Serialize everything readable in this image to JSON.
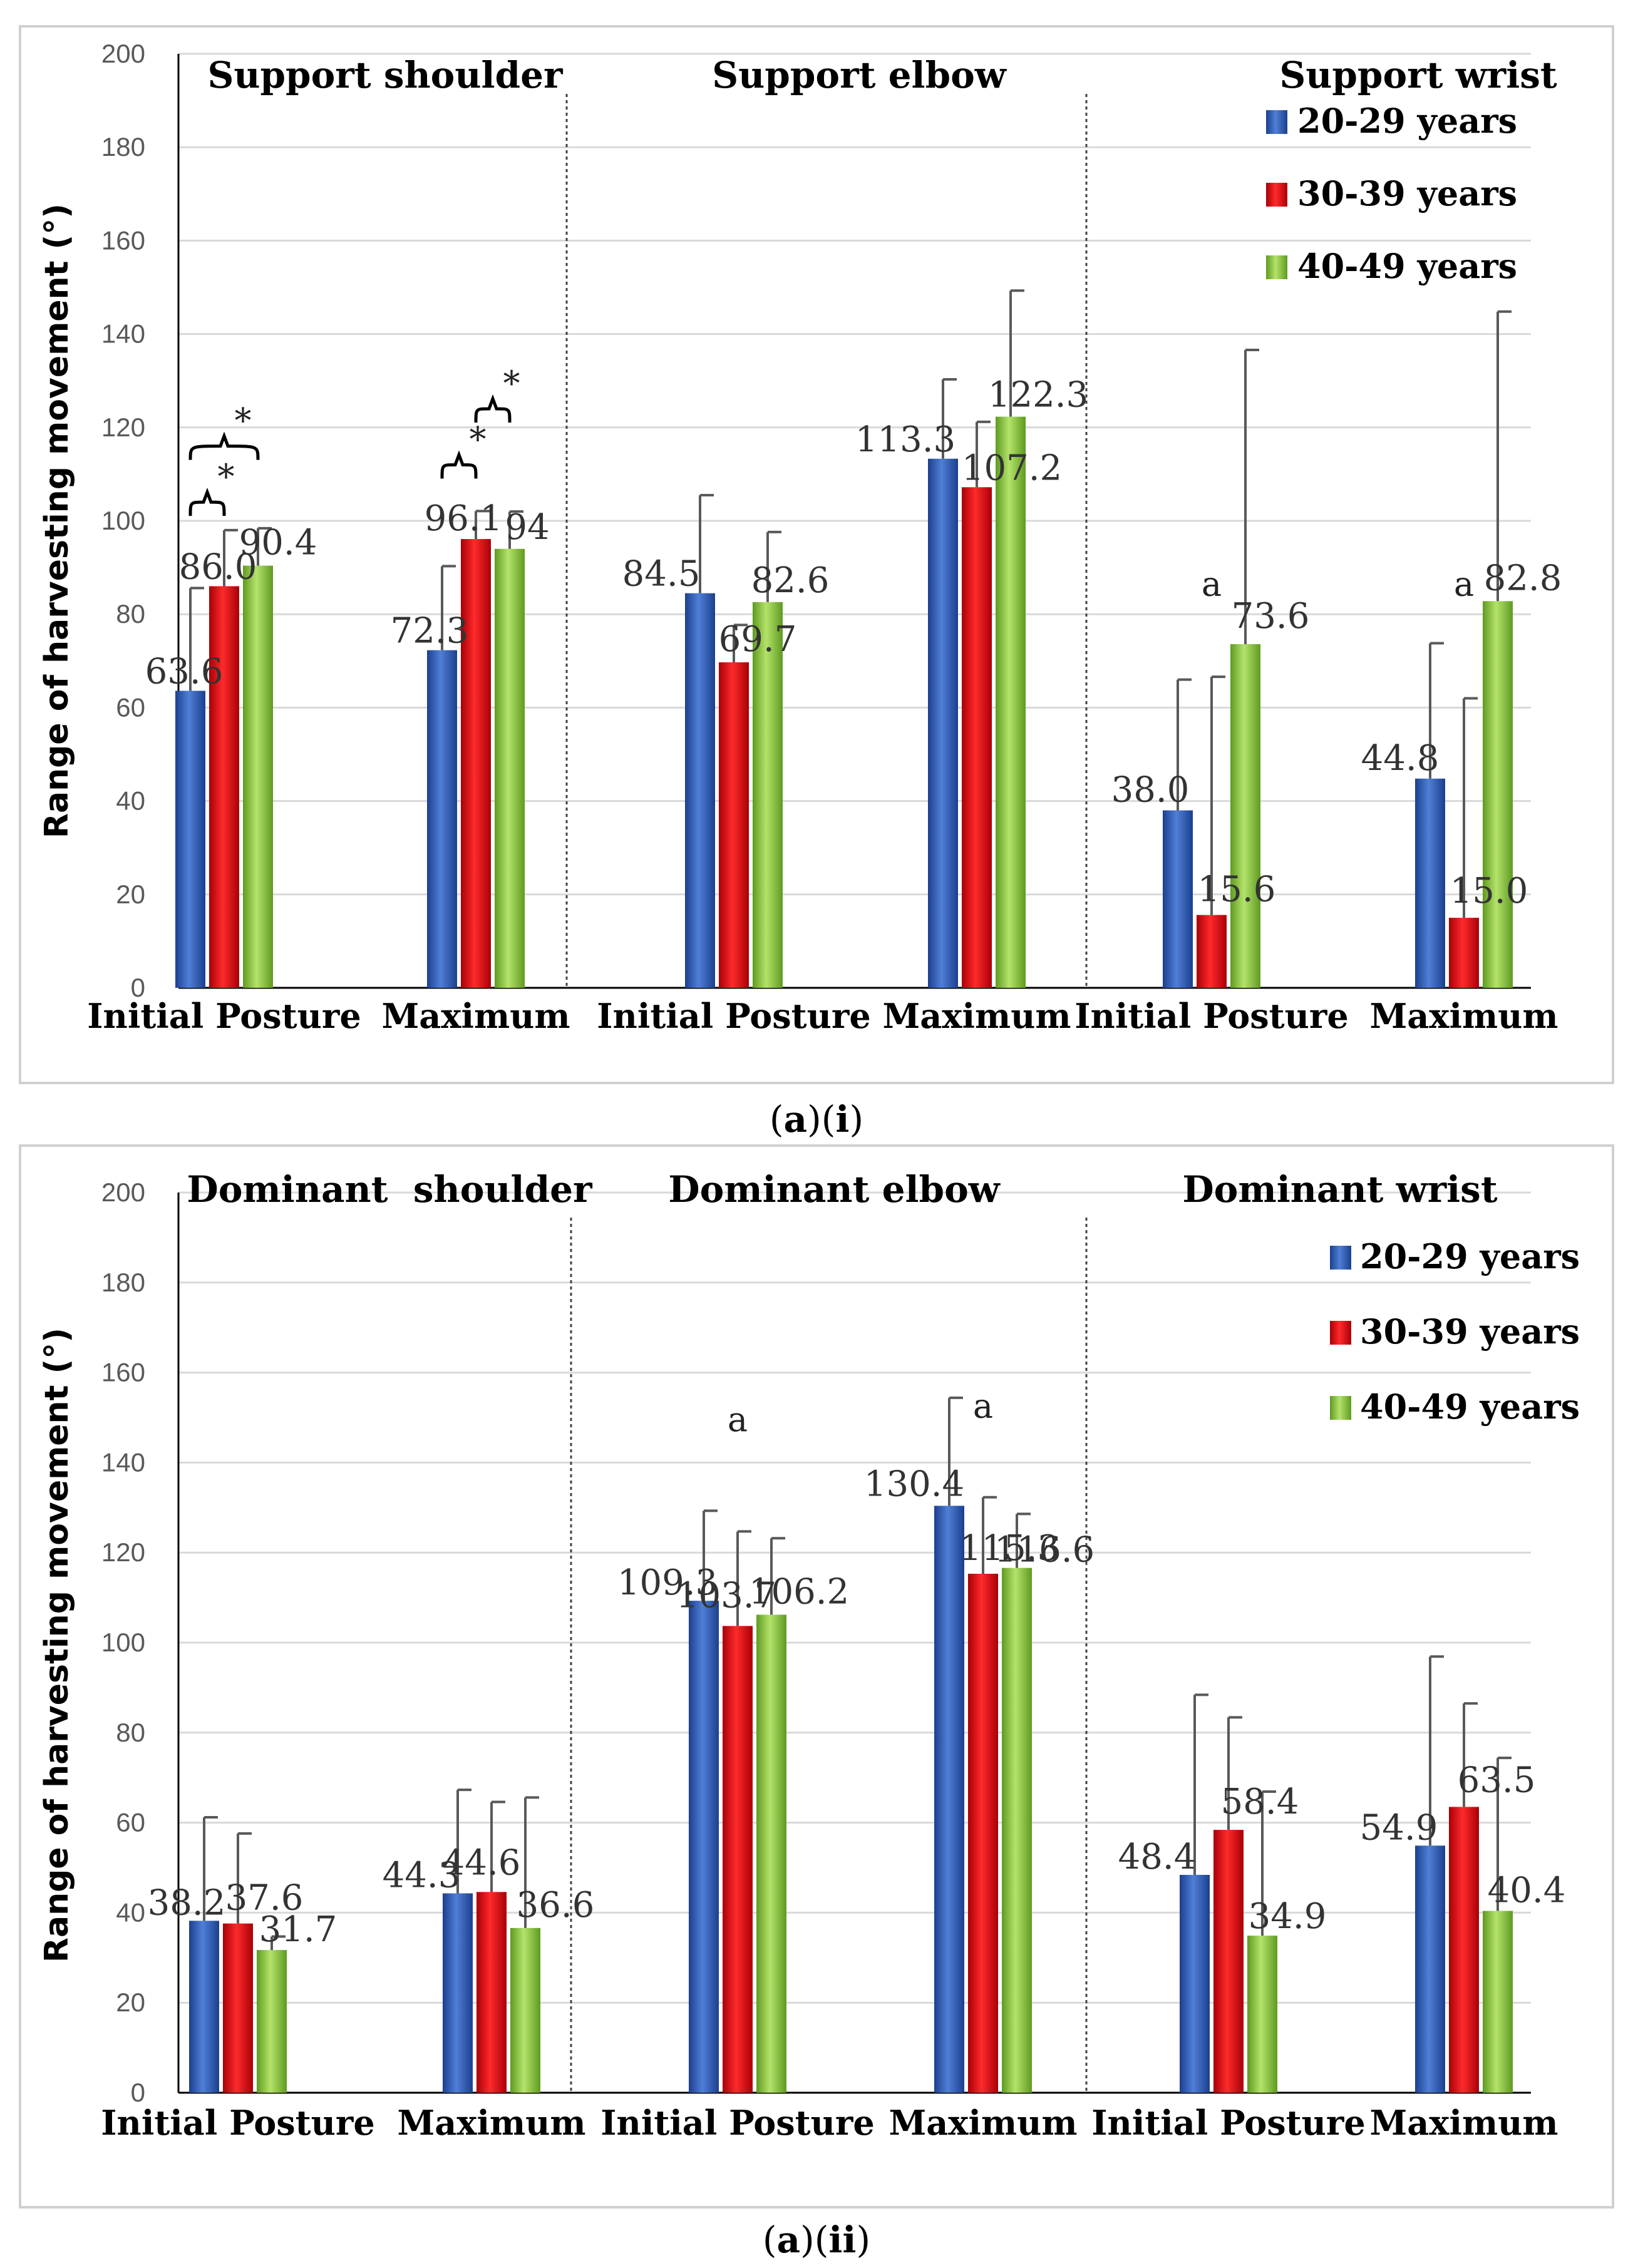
{
  "colors": {
    "s0": "#2f5bb5",
    "s1": "#e8000b",
    "s2": "#8ec83c",
    "s0_dark": "#1c3f8e",
    "s1_dark": "#a80008",
    "s2_dark": "#5f9a21"
  },
  "chart_data": [
    {
      "type": "bar",
      "caption": {
        "open": "(",
        "part1": "a",
        "mid": ")(",
        "part2": "i",
        "close": ")"
      },
      "ylabel": "Range of harvesting movement (°)",
      "ylim": [
        0,
        200
      ],
      "yticks": [
        0,
        20,
        40,
        60,
        80,
        100,
        120,
        140,
        160,
        180,
        200
      ],
      "grid": true,
      "legend": {
        "position": "top-right",
        "entries": [
          "20-29 years",
          "30-39 years",
          "40-49 years"
        ]
      },
      "groups": [
        {
          "title": "Support shoulder",
          "categories": [
            {
              "label": "Initial Posture",
              "values": [
                63.6,
                86.0,
                90.4
              ],
              "labels": [
                "63.6",
                "86.0",
                "90.4"
              ],
              "errors": [
                22,
                12,
                8
              ],
              "annotation": "",
              "brackets": [
                [
                  "0",
                  "1",
                  "*"
                ],
                [
                  "0",
                  "2",
                  "*"
                ]
              ]
            },
            {
              "label": "Maximum",
              "values": [
                72.3,
                96.1,
                94.0
              ],
              "labels": [
                "72.3",
                "96.1",
                "94"
              ],
              "errors": [
                18,
                6,
                8
              ],
              "annotation": "",
              "brackets": [
                [
                  "0",
                  "1",
                  "*"
                ],
                [
                  "1",
                  "2",
                  "*"
                ]
              ]
            }
          ]
        },
        {
          "title": "Support elbow",
          "categories": [
            {
              "label": "Initial Posture",
              "values": [
                84.5,
                69.7,
                82.6
              ],
              "labels": [
                "84.5",
                "69.7",
                "82.6"
              ],
              "errors": [
                21,
                8,
                15
              ],
              "annotation": "",
              "brackets": []
            },
            {
              "label": "Maximum",
              "values": [
                113.3,
                107.2,
                122.3
              ],
              "labels": [
                "113.3",
                "107.2",
                "122.3"
              ],
              "errors": [
                17,
                14,
                27
              ],
              "annotation": "",
              "brackets": []
            }
          ]
        },
        {
          "title": "Support wrist",
          "categories": [
            {
              "label": "Initial Posture",
              "values": [
                38.0,
                15.6,
                73.6
              ],
              "labels": [
                "38.0",
                "15.6",
                "73.6"
              ],
              "errors": [
                28,
                51,
                63
              ],
              "annotation": "a",
              "brackets": []
            },
            {
              "label": "Maximum",
              "values": [
                44.8,
                15.0,
                82.8
              ],
              "labels": [
                "44.8",
                "15.0",
                "82.8"
              ],
              "errors": [
                29,
                47,
                62
              ],
              "annotation": "a",
              "brackets": []
            }
          ]
        }
      ]
    },
    {
      "type": "bar",
      "caption": {
        "open": "(",
        "part1": "a",
        "mid": ")(",
        "part2": "ii",
        "close": ")"
      },
      "ylabel": "Range of harvesting movement (°)",
      "ylim": [
        0,
        200
      ],
      "yticks": [
        0,
        20,
        40,
        60,
        80,
        100,
        120,
        140,
        160,
        180,
        200
      ],
      "grid": true,
      "legend": {
        "position": "top-right",
        "entries": [
          "20-29 years",
          "30-39 years",
          "40-49 years"
        ]
      },
      "groups": [
        {
          "title": "Dominant  shoulder",
          "categories": [
            {
              "label": "Initial Posture",
              "values": [
                38.2,
                37.6,
                31.7
              ],
              "labels": [
                "38.2",
                "37.6",
                "31.7"
              ],
              "errors": [
                23,
                20,
                3
              ],
              "annotation": "",
              "brackets": []
            },
            {
              "label": "Maximum",
              "values": [
                44.3,
                44.6,
                36.6
              ],
              "labels": [
                "44.3",
                "44.6",
                "36.6"
              ],
              "errors": [
                23,
                20,
                29
              ],
              "annotation": "",
              "brackets": []
            }
          ]
        },
        {
          "title": "Dominant elbow",
          "categories": [
            {
              "label": "Initial Posture",
              "values": [
                109.3,
                103.7,
                106.2
              ],
              "labels": [
                "109.3",
                "103.7",
                "106.2"
              ],
              "errors": [
                20,
                21,
                17
              ],
              "annotation": "a",
              "brackets": []
            },
            {
              "label": "Maximum",
              "values": [
                130.4,
                115.3,
                116.6
              ],
              "labels": [
                "130.4",
                "115.3",
                "116.6"
              ],
              "errors": [
                24,
                17,
                12
              ],
              "annotation": "a",
              "brackets": []
            }
          ]
        },
        {
          "title": "Dominant wrist",
          "categories": [
            {
              "label": "Initial Posture",
              "values": [
                48.4,
                58.4,
                34.9
              ],
              "labels": [
                "48.4",
                "58.4",
                "34.9"
              ],
              "errors": [
                40,
                25,
                32
              ],
              "annotation": "",
              "brackets": []
            },
            {
              "label": "Maximum",
              "values": [
                54.9,
                63.5,
                40.4
              ],
              "labels": [
                "54.9",
                "63.5",
                "40.4"
              ],
              "errors": [
                42,
                23,
                34
              ],
              "annotation": "",
              "brackets": []
            }
          ]
        }
      ]
    }
  ]
}
